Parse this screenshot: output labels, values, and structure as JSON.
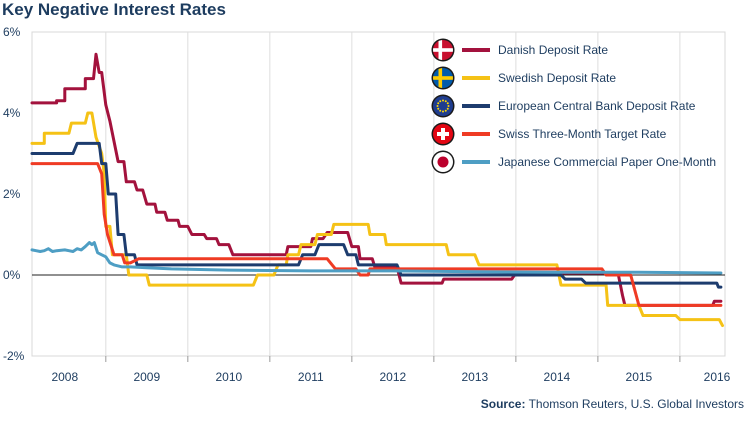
{
  "chart_data": {
    "type": "line",
    "title": "Key Negative Interest Rates",
    "xlabel": "",
    "ylabel": "",
    "x_ticks": [
      "2008",
      "2009",
      "2010",
      "2011",
      "2012",
      "2013",
      "2014",
      "2015",
      "2016"
    ],
    "y_ticks": [
      "6%",
      "4%",
      "2%",
      "0%",
      "-2%"
    ],
    "ylim": [
      -2,
      6
    ],
    "xlim": [
      2007.6,
      2016.05
    ],
    "grid": "vertical",
    "legend": "top-right",
    "series": [
      {
        "name": "Danish Deposit Rate",
        "color": "#a3123d",
        "flag": "denmark",
        "points": [
          [
            2007.6,
            4.25
          ],
          [
            2007.9,
            4.25
          ],
          [
            2007.9,
            4.3
          ],
          [
            2008.0,
            4.3
          ],
          [
            2008.0,
            4.6
          ],
          [
            2008.25,
            4.6
          ],
          [
            2008.25,
            4.85
          ],
          [
            2008.35,
            4.85
          ],
          [
            2008.38,
            5.45
          ],
          [
            2008.42,
            5.0
          ],
          [
            2008.45,
            5.0
          ],
          [
            2008.5,
            4.2
          ],
          [
            2008.55,
            3.8
          ],
          [
            2008.6,
            3.3
          ],
          [
            2008.65,
            2.8
          ],
          [
            2008.72,
            2.8
          ],
          [
            2008.75,
            2.3
          ],
          [
            2008.85,
            2.3
          ],
          [
            2008.88,
            2.1
          ],
          [
            2008.95,
            2.1
          ],
          [
            2009.0,
            1.75
          ],
          [
            2009.1,
            1.75
          ],
          [
            2009.12,
            1.55
          ],
          [
            2009.22,
            1.55
          ],
          [
            2009.25,
            1.35
          ],
          [
            2009.38,
            1.35
          ],
          [
            2009.4,
            1.2
          ],
          [
            2009.5,
            1.2
          ],
          [
            2009.55,
            1.0
          ],
          [
            2009.7,
            1.0
          ],
          [
            2009.73,
            0.9
          ],
          [
            2009.85,
            0.9
          ],
          [
            2009.88,
            0.75
          ],
          [
            2010.0,
            0.75
          ],
          [
            2010.05,
            0.5
          ],
          [
            2010.7,
            0.5
          ],
          [
            2010.72,
            0.7
          ],
          [
            2011.0,
            0.7
          ],
          [
            2011.02,
            0.9
          ],
          [
            2011.15,
            0.9
          ],
          [
            2011.2,
            1.05
          ],
          [
            2011.45,
            1.05
          ],
          [
            2011.5,
            0.7
          ],
          [
            2011.58,
            0.7
          ],
          [
            2011.6,
            0.4
          ],
          [
            2011.75,
            0.4
          ],
          [
            2011.78,
            0.2
          ],
          [
            2012.05,
            0.2
          ],
          [
            2012.1,
            -0.2
          ],
          [
            2012.6,
            -0.2
          ],
          [
            2012.62,
            -0.1
          ],
          [
            2013.45,
            -0.1
          ],
          [
            2013.5,
            0.05
          ],
          [
            2014.6,
            0.05
          ],
          [
            2014.62,
            0.0
          ],
          [
            2014.75,
            0.0
          ],
          [
            2014.8,
            -0.5
          ],
          [
            2014.83,
            -0.75
          ],
          [
            2015.9,
            -0.75
          ],
          [
            2015.92,
            -0.65
          ],
          [
            2016.0,
            -0.65
          ]
        ]
      },
      {
        "name": "Swedish Deposit Rate",
        "color": "#f5c216",
        "flag": "sweden",
        "points": [
          [
            2007.6,
            3.25
          ],
          [
            2007.75,
            3.25
          ],
          [
            2007.75,
            3.5
          ],
          [
            2008.05,
            3.5
          ],
          [
            2008.08,
            3.75
          ],
          [
            2008.25,
            3.75
          ],
          [
            2008.28,
            4.0
          ],
          [
            2008.33,
            4.0
          ],
          [
            2008.38,
            3.4
          ],
          [
            2008.45,
            3.0
          ],
          [
            2008.48,
            2.5
          ],
          [
            2008.5,
            1.2
          ],
          [
            2008.55,
            1.2
          ],
          [
            2008.58,
            0.5
          ],
          [
            2008.75,
            0.5
          ],
          [
            2008.78,
            0.0
          ],
          [
            2009.0,
            0.0
          ],
          [
            2009.03,
            -0.25
          ],
          [
            2010.3,
            -0.25
          ],
          [
            2010.35,
            0.0
          ],
          [
            2010.55,
            0.0
          ],
          [
            2010.6,
            0.25
          ],
          [
            2010.7,
            0.25
          ],
          [
            2010.72,
            0.5
          ],
          [
            2010.85,
            0.5
          ],
          [
            2010.88,
            0.75
          ],
          [
            2011.05,
            0.75
          ],
          [
            2011.08,
            1.0
          ],
          [
            2011.25,
            1.0
          ],
          [
            2011.28,
            1.25
          ],
          [
            2011.7,
            1.25
          ],
          [
            2011.72,
            1.0
          ],
          [
            2011.9,
            1.0
          ],
          [
            2011.92,
            0.75
          ],
          [
            2012.65,
            0.75
          ],
          [
            2012.68,
            0.5
          ],
          [
            2013.0,
            0.5
          ],
          [
            2013.05,
            0.25
          ],
          [
            2014.0,
            0.25
          ],
          [
            2014.05,
            -0.25
          ],
          [
            2014.6,
            -0.25
          ],
          [
            2014.62,
            -0.75
          ],
          [
            2015.0,
            -0.75
          ],
          [
            2015.05,
            -1.0
          ],
          [
            2015.45,
            -1.0
          ],
          [
            2015.5,
            -1.1
          ],
          [
            2015.98,
            -1.1
          ],
          [
            2016.02,
            -1.25
          ]
        ]
      },
      {
        "name": "European Central Bank Deposit Rate",
        "color": "#1d3c6e",
        "flag": "eu",
        "points": [
          [
            2007.6,
            3.0
          ],
          [
            2008.1,
            3.0
          ],
          [
            2008.15,
            3.25
          ],
          [
            2008.42,
            3.25
          ],
          [
            2008.45,
            2.75
          ],
          [
            2008.5,
            2.75
          ],
          [
            2008.53,
            2.0
          ],
          [
            2008.62,
            2.0
          ],
          [
            2008.65,
            1.0
          ],
          [
            2008.72,
            1.0
          ],
          [
            2008.75,
            0.5
          ],
          [
            2008.85,
            0.5
          ],
          [
            2008.88,
            0.25
          ],
          [
            2010.85,
            0.25
          ],
          [
            2010.9,
            0.5
          ],
          [
            2011.05,
            0.5
          ],
          [
            2011.1,
            0.75
          ],
          [
            2011.4,
            0.75
          ],
          [
            2011.45,
            0.5
          ],
          [
            2011.55,
            0.5
          ],
          [
            2011.58,
            0.25
          ],
          [
            2012.05,
            0.25
          ],
          [
            2012.1,
            0.0
          ],
          [
            2014.05,
            0.0
          ],
          [
            2014.1,
            -0.1
          ],
          [
            2014.3,
            -0.1
          ],
          [
            2014.35,
            -0.2
          ],
          [
            2015.5,
            -0.2
          ],
          [
            2015.95,
            -0.2
          ],
          [
            2015.97,
            -0.3
          ],
          [
            2016.0,
            -0.3
          ]
        ]
      },
      {
        "name": "Swiss Three-Month Target Rate",
        "color": "#ef3b24",
        "flag": "switzerland",
        "points": [
          [
            2007.6,
            2.75
          ],
          [
            2008.4,
            2.75
          ],
          [
            2008.45,
            2.5
          ],
          [
            2008.48,
            1.5
          ],
          [
            2008.52,
            1.0
          ],
          [
            2008.6,
            0.5
          ],
          [
            2008.7,
            0.5
          ],
          [
            2008.73,
            0.3
          ],
          [
            2008.8,
            0.3
          ],
          [
            2008.9,
            0.4
          ],
          [
            2011.2,
            0.4
          ],
          [
            2011.3,
            0.15
          ],
          [
            2011.55,
            0.15
          ],
          [
            2011.6,
            0.0
          ],
          [
            2011.7,
            0.0
          ],
          [
            2011.72,
            0.15
          ],
          [
            2014.55,
            0.15
          ],
          [
            2014.6,
            0.0
          ],
          [
            2014.9,
            0.0
          ],
          [
            2015.0,
            -0.75
          ],
          [
            2016.0,
            -0.75
          ]
        ]
      },
      {
        "name": "Japanese Commercial Paper One-Month",
        "color": "#4e9ec4",
        "flag": "japan",
        "points": [
          [
            2007.6,
            0.62
          ],
          [
            2007.65,
            0.6
          ],
          [
            2007.7,
            0.58
          ],
          [
            2007.75,
            0.6
          ],
          [
            2007.8,
            0.65
          ],
          [
            2007.85,
            0.58
          ],
          [
            2007.9,
            0.6
          ],
          [
            2008.0,
            0.62
          ],
          [
            2008.05,
            0.6
          ],
          [
            2008.1,
            0.58
          ],
          [
            2008.15,
            0.65
          ],
          [
            2008.2,
            0.62
          ],
          [
            2008.25,
            0.7
          ],
          [
            2008.3,
            0.8
          ],
          [
            2008.33,
            0.75
          ],
          [
            2008.36,
            0.8
          ],
          [
            2008.4,
            0.55
          ],
          [
            2008.45,
            0.5
          ],
          [
            2008.5,
            0.45
          ],
          [
            2008.55,
            0.3
          ],
          [
            2008.6,
            0.25
          ],
          [
            2008.7,
            0.2
          ],
          [
            2008.8,
            0.2
          ],
          [
            2009.0,
            0.18
          ],
          [
            2009.3,
            0.15
          ],
          [
            2010.0,
            0.12
          ],
          [
            2011.0,
            0.1
          ],
          [
            2012.0,
            0.1
          ],
          [
            2013.0,
            0.08
          ],
          [
            2014.0,
            0.07
          ],
          [
            2015.0,
            0.07
          ],
          [
            2016.0,
            0.05
          ]
        ]
      }
    ]
  },
  "source": {
    "label": "Source:",
    "text": "Thomson Reuters, U.S. Global Investors"
  }
}
